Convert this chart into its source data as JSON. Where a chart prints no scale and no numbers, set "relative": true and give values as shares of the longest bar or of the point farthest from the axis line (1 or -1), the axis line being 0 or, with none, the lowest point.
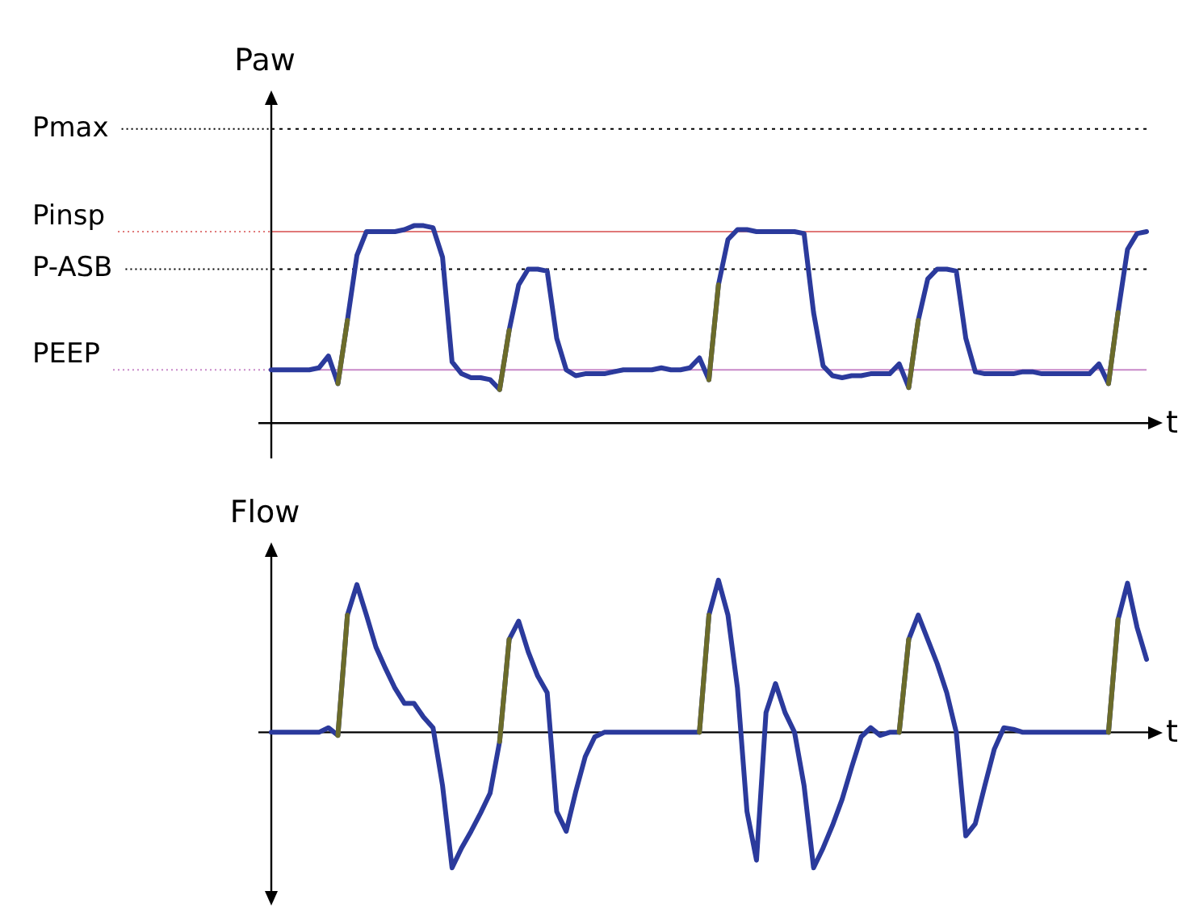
{
  "chart_data": [
    {
      "type": "line",
      "relative": true,
      "ylabel": "Paw",
      "xlabel": "t",
      "marker": "none",
      "line_style": "solid",
      "categories": [
        null,
        null,
        null,
        null,
        null,
        null,
        null,
        null,
        null,
        null,
        null,
        null,
        null,
        null,
        null,
        null,
        null,
        null,
        null,
        null,
        null,
        null,
        null,
        null,
        null,
        null,
        null,
        null,
        null,
        null,
        null,
        null,
        null,
        null,
        null,
        null,
        null,
        null,
        null,
        null,
        null,
        null,
        null,
        null,
        null,
        null,
        null,
        null,
        null,
        null,
        null,
        null,
        null,
        null,
        null,
        null,
        null,
        null,
        null,
        null,
        null,
        null,
        null,
        null,
        null,
        null,
        null,
        null,
        null,
        null,
        null,
        null,
        null,
        null,
        null,
        null,
        null,
        null,
        null,
        null,
        null,
        null,
        null,
        null,
        null,
        null,
        null,
        null,
        null,
        null,
        null,
        null,
        null
      ],
      "series": [
        {
          "color": "#2b3a9c",
          "values": [
            0.27,
            0.27,
            0.27,
            0.27,
            0.27,
            0.28,
            0.34,
            0.2,
            0.52,
            0.85,
            0.97,
            0.97,
            0.97,
            0.97,
            0.98,
            1,
            1,
            0.99,
            0.84,
            0.31,
            0.25,
            0.23,
            0.23,
            0.22,
            0.17,
            0.47,
            0.7,
            0.78,
            0.78,
            0.77,
            0.43,
            0.27,
            0.24,
            0.25,
            0.25,
            0.25,
            0.26,
            0.27,
            0.27,
            0.27,
            0.27,
            0.28,
            0.27,
            0.27,
            0.28,
            0.33,
            0.22,
            0.7,
            0.93,
            0.98,
            0.98,
            0.97,
            0.97,
            0.97,
            0.97,
            0.97,
            0.96,
            0.56,
            0.29,
            0.24,
            0.23,
            0.24,
            0.24,
            0.25,
            0.25,
            0.25,
            0.3,
            0.18,
            0.52,
            0.73,
            0.78,
            0.78,
            0.77,
            0.43,
            0.26,
            0.25,
            0.25,
            0.25,
            0.25,
            0.26,
            0.26,
            0.25,
            0.25,
            0.25,
            0.25,
            0.25,
            0.25,
            0.3,
            0.2,
            0.56,
            0.88,
            0.96,
            0.97
          ]
        },
        {
          "color": "#6b6b2a",
          "values": [
            null,
            null,
            null,
            null,
            null,
            null,
            null,
            0.2,
            0.52,
            null,
            null,
            null,
            null,
            null,
            null,
            null,
            null,
            null,
            null,
            null,
            null,
            null,
            null,
            null,
            0.17,
            0.47,
            null,
            null,
            null,
            null,
            null,
            null,
            null,
            null,
            null,
            null,
            null,
            null,
            null,
            null,
            null,
            null,
            null,
            null,
            null,
            null,
            0.22,
            0.7,
            null,
            null,
            null,
            null,
            null,
            null,
            null,
            null,
            null,
            null,
            null,
            null,
            null,
            null,
            null,
            null,
            null,
            null,
            null,
            0.18,
            0.52,
            null,
            null,
            null,
            null,
            null,
            null,
            null,
            null,
            null,
            null,
            null,
            null,
            null,
            null,
            null,
            null,
            null,
            null,
            null,
            0.2,
            0.56,
            null,
            null,
            null
          ]
        }
      ],
      "ref_lines": [
        {
          "axis": "y",
          "value": 1.49,
          "label": "Pmax",
          "color": "#000000",
          "line_style": "dotted"
        },
        {
          "axis": "y",
          "value": 0.97,
          "label": "Pinsp",
          "color": "#e07878",
          "line_style": "solid"
        },
        {
          "axis": "y",
          "value": 0.78,
          "label": "P-ASB",
          "color": "#000000",
          "line_style": "dotted"
        },
        {
          "axis": "y",
          "value": 0.27,
          "label": "PEEP",
          "color": "#c888c8",
          "line_style": "solid"
        }
      ]
    },
    {
      "type": "line",
      "relative": true,
      "ylabel": "Flow",
      "xlabel": "t",
      "marker": "none",
      "line_style": "solid",
      "categories": [
        null,
        null,
        null,
        null,
        null,
        null,
        null,
        null,
        null,
        null,
        null,
        null,
        null,
        null,
        null,
        null,
        null,
        null,
        null,
        null,
        null,
        null,
        null,
        null,
        null,
        null,
        null,
        null,
        null,
        null,
        null,
        null,
        null,
        null,
        null,
        null,
        null,
        null,
        null,
        null,
        null,
        null,
        null,
        null,
        null,
        null,
        null,
        null,
        null,
        null,
        null,
        null,
        null,
        null,
        null,
        null,
        null,
        null,
        null,
        null,
        null,
        null,
        null,
        null,
        null,
        null,
        null,
        null,
        null,
        null,
        null,
        null,
        null,
        null,
        null,
        null,
        null,
        null,
        null,
        null,
        null,
        null,
        null,
        null,
        null,
        null,
        null,
        null,
        null,
        null,
        null,
        null,
        null
      ],
      "series": [
        {
          "color": "#2b3a9c",
          "values": [
            0,
            0,
            0,
            0,
            0,
            0,
            0.03,
            -0.02,
            0.77,
            0.97,
            0.77,
            0.56,
            0.42,
            0.29,
            0.19,
            0.19,
            0.1,
            0.03,
            -0.35,
            -0.89,
            -0.76,
            -0.65,
            -0.53,
            -0.4,
            -0.06,
            0.61,
            0.73,
            0.53,
            0.37,
            0.26,
            -0.52,
            -0.65,
            -0.39,
            -0.16,
            -0.03,
            0,
            0,
            0,
            0,
            0,
            0,
            0,
            0,
            0,
            0,
            0,
            0.77,
            1,
            0.77,
            0.29,
            -0.52,
            -0.84,
            0.13,
            0.32,
            0.13,
            0,
            -0.35,
            -0.89,
            -0.76,
            -0.61,
            -0.44,
            -0.23,
            -0.03,
            0.03,
            -0.02,
            0,
            0,
            0.61,
            0.77,
            0.61,
            0.45,
            0.26,
            0,
            -0.68,
            -0.6,
            -0.35,
            -0.11,
            0.03,
            0.02,
            0,
            0,
            0,
            0,
            0,
            0,
            0,
            0,
            0,
            0,
            0.74,
            0.98,
            0.69,
            0.48
          ]
        },
        {
          "color": "#6b6b2a",
          "values": [
            null,
            null,
            null,
            null,
            null,
            null,
            null,
            -0.02,
            0.77,
            null,
            null,
            null,
            null,
            null,
            null,
            null,
            null,
            null,
            null,
            null,
            null,
            null,
            null,
            null,
            -0.06,
            0.61,
            null,
            null,
            null,
            null,
            null,
            null,
            null,
            null,
            null,
            null,
            null,
            null,
            null,
            null,
            null,
            null,
            null,
            null,
            null,
            0,
            0.77,
            null,
            null,
            null,
            null,
            null,
            null,
            null,
            null,
            null,
            null,
            null,
            null,
            null,
            null,
            null,
            null,
            null,
            null,
            null,
            0,
            0.61,
            null,
            null,
            null,
            null,
            null,
            null,
            null,
            null,
            null,
            null,
            null,
            null,
            null,
            null,
            null,
            null,
            null,
            null,
            null,
            null,
            0,
            0.74,
            null,
            null,
            null
          ]
        }
      ]
    }
  ]
}
